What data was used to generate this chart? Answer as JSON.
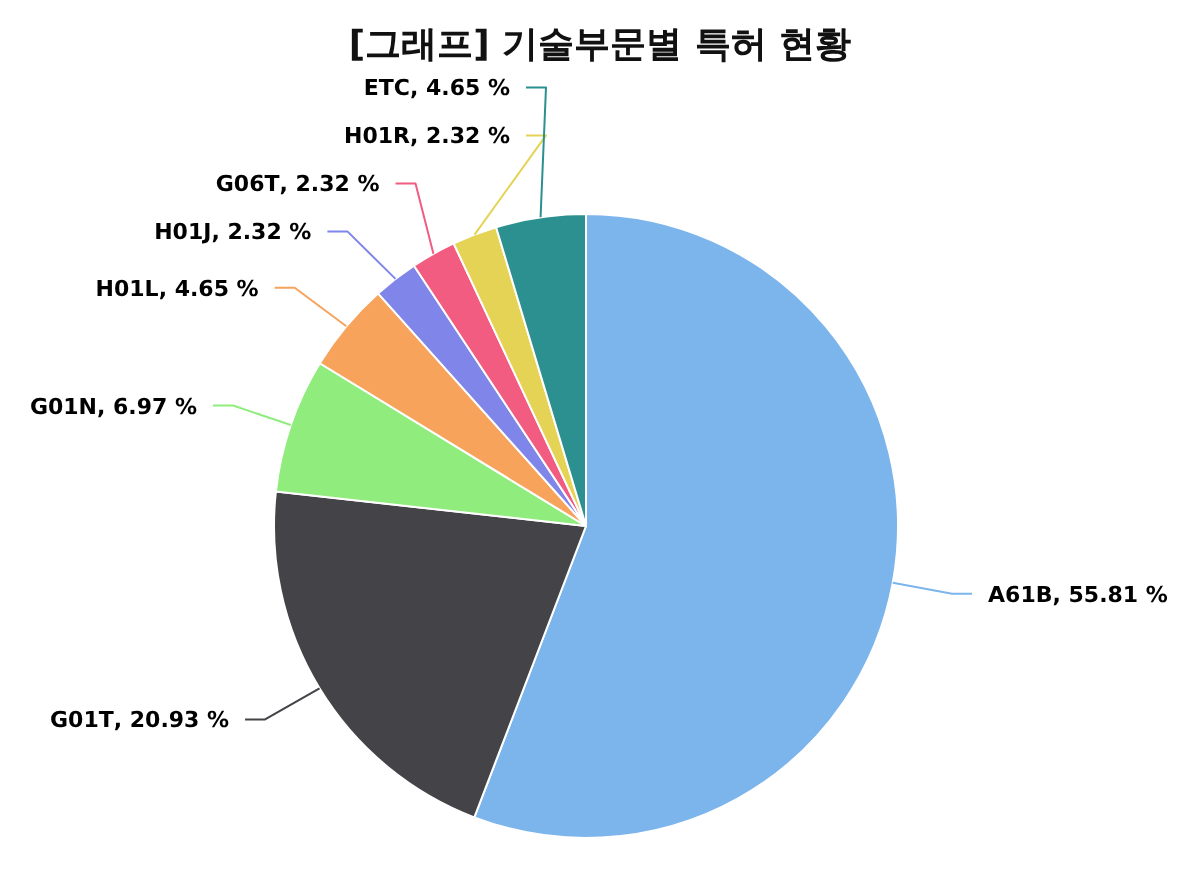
{
  "chart_data": {
    "type": "pie",
    "title": "[그래프] 기술부문별 특허 현황",
    "categories": [
      "A61B",
      "G01T",
      "G01N",
      "H01L",
      "H01J",
      "G06T",
      "H01R",
      "ETC"
    ],
    "values": [
      55.81,
      20.93,
      6.97,
      4.65,
      2.32,
      2.32,
      2.32,
      4.65
    ],
    "value_labels": [
      ", 55.81 %",
      ", 20.93 %",
      ", 6.97 %",
      ", 4.65 %",
      ", 2.32 %",
      ", 2.32 %",
      ", 2.32 %",
      ", 4.65 %"
    ],
    "colors": [
      "#7cb5ec",
      "#434348",
      "#90ed7d",
      "#f7a35c",
      "#8085e9",
      "#f15c80",
      "#e4d354",
      "#2b908f"
    ]
  }
}
